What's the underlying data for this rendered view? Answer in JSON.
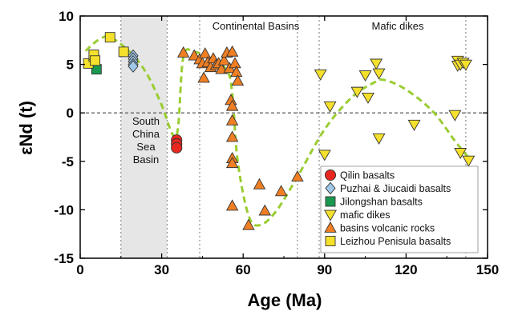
{
  "chart_data": {
    "type": "scatter",
    "title": "",
    "xlabel": "Age (Ma)",
    "ylabel": "εNd (t)",
    "xlim": [
      0,
      150
    ],
    "ylim": [
      -15,
      10
    ],
    "xticks": [
      0,
      30,
      60,
      90,
      120,
      150
    ],
    "yticks": [
      -15,
      -10,
      -5,
      0,
      5,
      10
    ],
    "zero_line": "dashed",
    "grid": false,
    "region_dividers_at": [
      15,
      32,
      44,
      80,
      88,
      142
    ],
    "shaded_region": {
      "from": 15,
      "to": 32,
      "color": "#e6e6e6"
    },
    "region_labels": {
      "scs": [
        "South",
        "China",
        "Sea",
        "Basin"
      ],
      "continental": "Continental Basins",
      "mafic": "Mafic dikes"
    },
    "trend_line": {
      "style": "dashed",
      "color": "#9acd32",
      "points": [
        [
          2,
          6.4
        ],
        [
          6,
          7.4
        ],
        [
          10,
          7.9
        ],
        [
          14,
          7.3
        ],
        [
          20,
          5.8
        ],
        [
          25,
          3.8
        ],
        [
          30,
          0.8
        ],
        [
          34,
          -2.2
        ],
        [
          36,
          -1.6
        ],
        [
          38,
          5.8
        ],
        [
          42,
          6.3
        ],
        [
          48,
          5.6
        ],
        [
          54,
          4.4
        ],
        [
          56,
          2.0
        ],
        [
          58,
          -5.0
        ],
        [
          62,
          -10.6
        ],
        [
          66,
          -11.6
        ],
        [
          72,
          -10.2
        ],
        [
          80,
          -6.6
        ],
        [
          90,
          -1.7
        ],
        [
          100,
          1.6
        ],
        [
          108,
          3.1
        ],
        [
          112,
          3.4
        ],
        [
          120,
          2.4
        ],
        [
          130,
          0.1
        ],
        [
          138,
          -2.9
        ],
        [
          143,
          -4.6
        ]
      ]
    },
    "series": [
      {
        "name": "Qilin basalts",
        "marker": "circle",
        "color": "#e8281e",
        "points": [
          [
            35.5,
            -2.8
          ],
          [
            35.5,
            -3.2
          ],
          [
            35.5,
            -3.6
          ]
        ]
      },
      {
        "name": "Puzhai & Jiucaidi basalts",
        "marker": "diamond",
        "color": "#9fc8e8",
        "points": [
          [
            19.5,
            5.9
          ],
          [
            19.5,
            5.6
          ],
          [
            19.5,
            5.3
          ],
          [
            19.5,
            5.0
          ],
          [
            19.5,
            4.8
          ]
        ]
      },
      {
        "name": "Jilongshan basalts",
        "marker": "square",
        "color": "#1a9850",
        "points": [
          [
            6,
            4.5
          ]
        ]
      },
      {
        "name": "mafic dikes",
        "marker": "triangle-down",
        "color": "#f5e02c",
        "points": [
          [
            88.5,
            4.0
          ],
          [
            90,
            -4.3
          ],
          [
            92,
            0.7
          ],
          [
            102,
            2.2
          ],
          [
            105,
            3.9
          ],
          [
            106,
            1.6
          ],
          [
            109,
            5.1
          ],
          [
            110,
            -2.6
          ],
          [
            110,
            4.1
          ],
          [
            123,
            -1.2
          ],
          [
            138,
            -0.2
          ],
          [
            139,
            5.4
          ],
          [
            139,
            4.9
          ],
          [
            140,
            5.0
          ],
          [
            140,
            -4.1
          ],
          [
            141,
            5.2
          ],
          [
            142,
            5.0
          ],
          [
            143,
            -4.9
          ]
        ]
      },
      {
        "name": "basins volcanic rocks",
        "marker": "triangle-up",
        "color": "#f07f24",
        "points": [
          [
            38,
            6.2
          ],
          [
            42,
            5.9
          ],
          [
            44,
            5.5
          ],
          [
            45,
            5.1
          ],
          [
            45.5,
            3.6
          ],
          [
            46,
            6.1
          ],
          [
            47,
            5.2
          ],
          [
            48,
            4.7
          ],
          [
            49,
            5.6
          ],
          [
            50,
            4.9
          ],
          [
            51,
            5.1
          ],
          [
            52,
            4.5
          ],
          [
            53,
            5.4
          ],
          [
            54,
            6.2
          ],
          [
            55,
            4.6
          ],
          [
            55.5,
            1.3
          ],
          [
            56,
            6.3
          ],
          [
            56,
            0.7
          ],
          [
            56,
            -0.8
          ],
          [
            56,
            -2.5
          ],
          [
            56,
            -4.7
          ],
          [
            56,
            -5.2
          ],
          [
            56,
            -9.6
          ],
          [
            57,
            5.1
          ],
          [
            57.5,
            4.2
          ],
          [
            58,
            3.3
          ],
          [
            62,
            -11.6
          ],
          [
            66,
            -7.4
          ],
          [
            68,
            -10.1
          ],
          [
            74,
            -8.1
          ],
          [
            80,
            -6.6
          ]
        ]
      },
      {
        "name": "Leizhou Penisula basalts",
        "marker": "square",
        "color": "#f5e02c",
        "points": [
          [
            3,
            5.1
          ],
          [
            5,
            5.8
          ],
          [
            5,
            6.0
          ],
          [
            5.5,
            5.4
          ],
          [
            11,
            7.8
          ],
          [
            16,
            6.3
          ]
        ]
      }
    ]
  }
}
